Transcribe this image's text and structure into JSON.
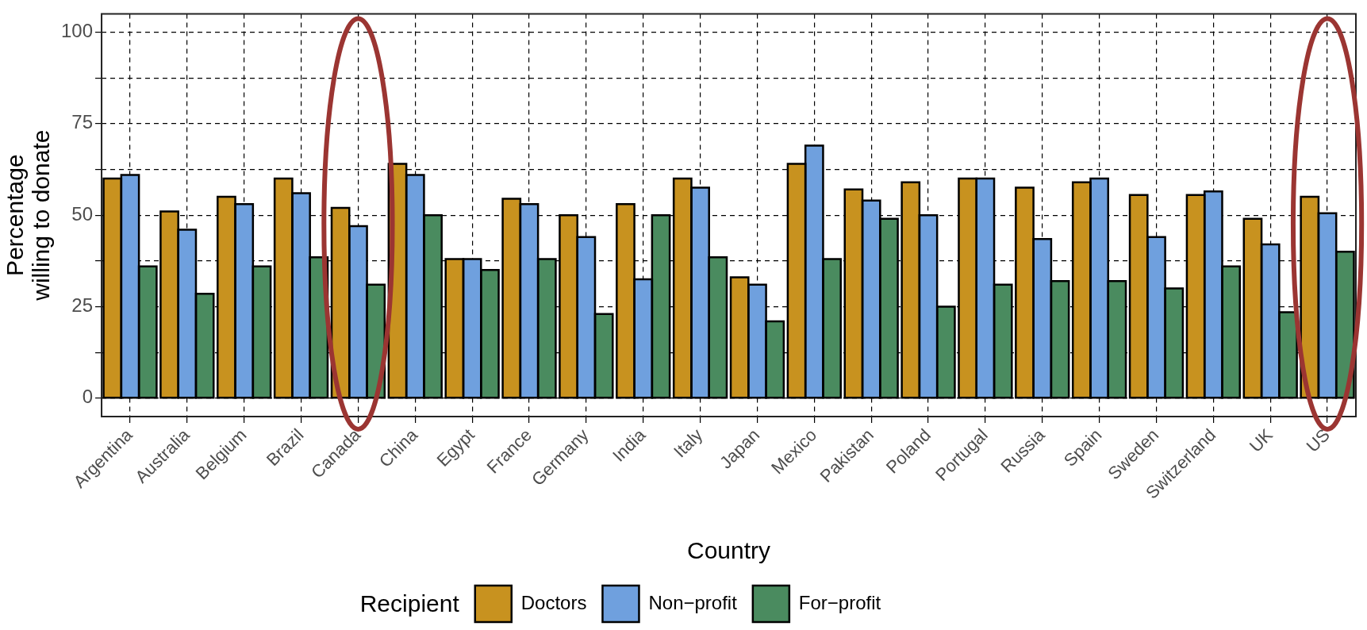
{
  "chart_data": {
    "type": "bar",
    "xlabel": "Country",
    "ylabel": "Percentage willing to donate",
    "legend_title": "Recipient",
    "legend": "bottom",
    "grid": true,
    "categories": [
      "Argentina",
      "Australia",
      "Belgium",
      "Brazil",
      "Canada",
      "China",
      "Egypt",
      "France",
      "Germany",
      "India",
      "Italy",
      "Japan",
      "Mexico",
      "Pakistan",
      "Poland",
      "Portugal",
      "Russia",
      "Spain",
      "Sweden",
      "Switzerland",
      "UK",
      "US"
    ],
    "series": [
      {
        "name": "Doctors",
        "color": "#c8921f",
        "values": [
          60,
          51,
          55,
          60,
          52,
          64,
          38,
          54.5,
          50,
          53,
          60,
          33,
          64,
          57,
          59,
          60,
          57.5,
          59,
          55.5,
          55.5,
          49,
          55
        ]
      },
      {
        "name": "Non−profit",
        "color": "#6fa0de",
        "values": [
          61,
          46,
          53,
          56,
          47,
          61,
          38,
          53,
          44,
          32.5,
          57.5,
          31,
          69,
          54,
          50,
          60,
          43.5,
          60,
          44,
          56.5,
          42,
          50.5
        ]
      },
      {
        "name": "For−profit",
        "color": "#4a8b5f",
        "values": [
          36,
          28.5,
          36,
          38.5,
          31,
          50,
          35,
          38,
          23,
          50,
          38.5,
          21,
          38,
          49,
          25,
          31,
          32,
          32,
          30,
          36,
          23.5,
          40
        ]
      }
    ],
    "ylim": [
      -5,
      105
    ],
    "yticks": [
      0,
      {
        "value": 12.5,
        "label": null
      },
      25,
      {
        "value": 37.5,
        "label": null
      },
      50,
      {
        "value": 62.5,
        "label": null
      },
      75,
      {
        "value": 87.5,
        "label": null
      },
      100
    ]
  }
}
